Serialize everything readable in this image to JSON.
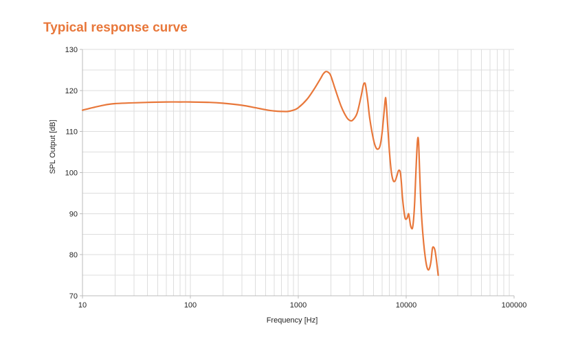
{
  "chart_data": {
    "type": "line",
    "title": "Typical response curve",
    "xlabel": "Frequency [Hz]",
    "ylabel": "SPL Output [dB]",
    "x_scale": "log",
    "xlim": [
      10,
      100000
    ],
    "ylim": [
      70,
      130
    ],
    "x_ticks": [
      10,
      100,
      1000,
      10000,
      100000
    ],
    "x_tick_labels": [
      "10",
      "100",
      "1000",
      "10000",
      "100000"
    ],
    "y_ticks": [
      70,
      80,
      90,
      100,
      110,
      120,
      130
    ],
    "y_tick_labels": [
      "70",
      "80",
      "90",
      "100",
      "110",
      "120",
      "130"
    ],
    "grid": true,
    "colors": {
      "title": "#e8773a",
      "line": "#e8773a",
      "grid": "#dddddd",
      "axis": "#bbbbbb"
    },
    "series": [
      {
        "x": [
          10,
          15,
          20,
          40,
          60,
          80,
          100,
          150,
          200,
          300,
          400,
          500,
          600,
          700,
          800,
          900,
          1000,
          1200,
          1400,
          1600,
          1700,
          1800,
          1900,
          2000,
          2200,
          2500,
          2800,
          3000,
          3200,
          3500,
          3800,
          4000,
          4100,
          4200,
          4400,
          4600,
          5000,
          5300,
          5600,
          5800,
          6000,
          6200,
          6400,
          6500,
          6700,
          7000,
          7300,
          7600,
          7900,
          8200,
          8500,
          8800,
          9000,
          9200,
          9500,
          9800,
          10200,
          10500,
          10700,
          11000,
          11400,
          11700,
          12000,
          12300,
          12700,
          13000,
          13300,
          13600,
          14000,
          14500,
          15000,
          15500,
          16000,
          16500,
          17000,
          17500,
          18000,
          18500,
          19000,
          19500,
          19800
        ],
        "y": [
          115.2,
          116.3,
          116.8,
          117.1,
          117.2,
          117.2,
          117.2,
          117.1,
          116.9,
          116.4,
          115.8,
          115.3,
          115.0,
          114.9,
          114.9,
          115.2,
          115.8,
          117.8,
          120.3,
          122.8,
          124.0,
          124.6,
          124.4,
          123.6,
          120.3,
          116.1,
          113.5,
          112.7,
          112.8,
          114.4,
          118.3,
          121.2,
          121.8,
          121.3,
          117.6,
          113.1,
          107.8,
          105.9,
          105.9,
          107.2,
          110.0,
          114.0,
          117.8,
          117.6,
          112.5,
          105.0,
          100.0,
          98.0,
          98.0,
          99.2,
          100.5,
          100.2,
          98.0,
          94.5,
          91.0,
          88.8,
          88.9,
          90.0,
          89.0,
          87.0,
          86.4,
          88.5,
          93.0,
          100.0,
          107.5,
          107.8,
          101.0,
          94.0,
          88.0,
          83.0,
          79.5,
          77.2,
          76.3,
          76.8,
          78.5,
          81.5,
          81.8,
          81.0,
          79.0,
          76.5,
          75.0
        ]
      }
    ]
  }
}
